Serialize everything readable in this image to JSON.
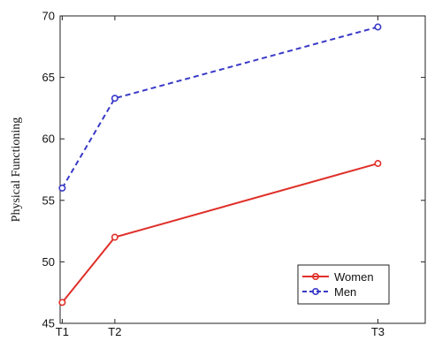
{
  "chart_data": {
    "type": "line",
    "title": "",
    "xlabel": "",
    "ylabel": "Physical Functioning",
    "ylim": [
      45,
      70
    ],
    "yticks": [
      45,
      50,
      55,
      60,
      65,
      70
    ],
    "x": [
      1,
      1.5,
      4
    ],
    "xlim": [
      0.98,
      4.45
    ],
    "xtick_labels": [
      "T1",
      "T2",
      "T3"
    ],
    "grid": false,
    "legend_position": "bottom-right",
    "series": [
      {
        "name": "Women",
        "values": [
          46.7,
          52.0,
          58.0
        ],
        "color": "#e0302a",
        "line_style": "solid"
      },
      {
        "name": "Men",
        "values": [
          56.0,
          63.3,
          69.1
        ],
        "color": "#3a3ac8",
        "line_style": "dashed"
      }
    ]
  }
}
